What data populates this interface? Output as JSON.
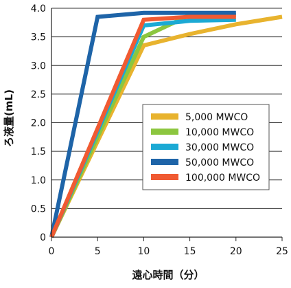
{
  "chart_data": {
    "type": "line",
    "xlabel": "遠心時間（分）",
    "ylabel": "ろ液量(mL)",
    "xlim": [
      0,
      25
    ],
    "ylim": [
      0,
      4.0
    ],
    "x_ticks": [
      "0",
      "5",
      "10",
      "15",
      "20",
      "25"
    ],
    "y_ticks": [
      "0",
      "0.5",
      "1.0",
      "1.5",
      "2.0",
      "2.5",
      "3.0",
      "3.5",
      "4.0"
    ],
    "grid": "horizontal",
    "legend_position": "center-right",
    "series": [
      {
        "name": "5,000 MWCO",
        "color": "#E8B32E",
        "points": [
          [
            0,
            0
          ],
          [
            10,
            3.35
          ],
          [
            15,
            3.55
          ],
          [
            20,
            3.72
          ],
          [
            25,
            3.85
          ]
        ]
      },
      {
        "name": "10,000 MWCO",
        "color": "#8CC63F",
        "points": [
          [
            0,
            0
          ],
          [
            10,
            3.5
          ],
          [
            15,
            3.88
          ],
          [
            20,
            3.88
          ]
        ]
      },
      {
        "name": "30,000 MWCO",
        "color": "#1BA9D4",
        "points": [
          [
            0,
            0
          ],
          [
            10,
            3.7
          ],
          [
            15,
            3.78
          ],
          [
            20,
            3.8
          ]
        ]
      },
      {
        "name": "50,000 MWCO",
        "color": "#1E64A8",
        "points": [
          [
            0,
            0
          ],
          [
            5,
            3.85
          ],
          [
            10,
            3.92
          ],
          [
            20,
            3.92
          ]
        ]
      },
      {
        "name": "100,000 MWCO",
        "color": "#F05A32",
        "points": [
          [
            0,
            0
          ],
          [
            10,
            3.8
          ],
          [
            15,
            3.85
          ],
          [
            20,
            3.85
          ]
        ]
      }
    ]
  }
}
